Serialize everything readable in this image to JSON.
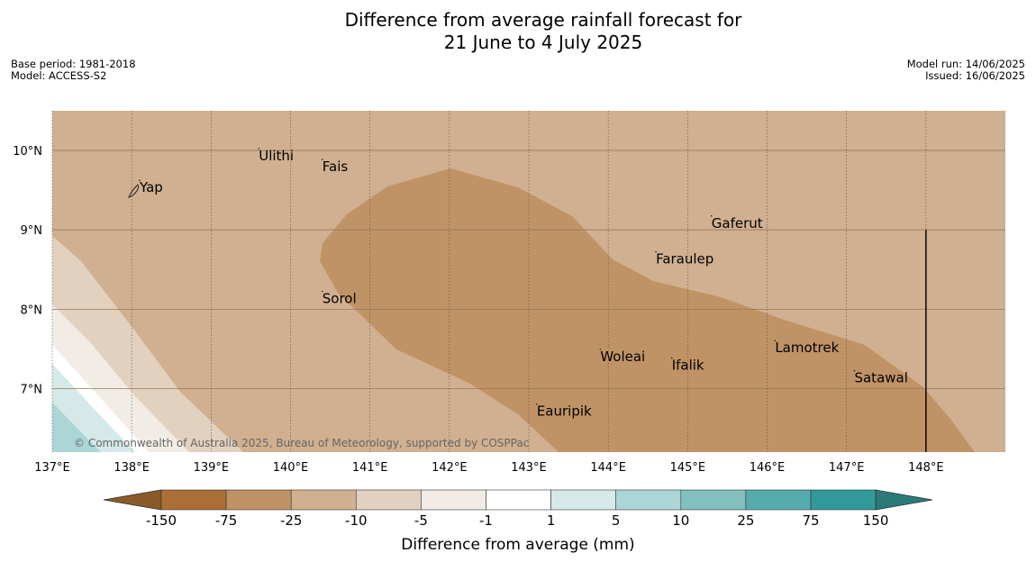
{
  "title": {
    "line1": "Difference from average rainfall forecast for",
    "line2": "21 June to 4 July 2025"
  },
  "meta_left": {
    "base_period": "Base period: 1981-2018",
    "model": "Model: ACCESS-S2"
  },
  "meta_right": {
    "model_run": "Model run: 14/06/2025",
    "issued": "Issued: 16/06/2025"
  },
  "map": {
    "lon_range": [
      137,
      149
    ],
    "lat_range": [
      6.2,
      10.5
    ],
    "lat_ticks": [
      {
        "value": 10,
        "label": "10°N"
      },
      {
        "value": 9,
        "label": "9°N"
      },
      {
        "value": 8,
        "label": "8°N"
      },
      {
        "value": 7,
        "label": "7°N"
      }
    ],
    "lon_ticks": [
      {
        "value": 137,
        "label": "137°E"
      },
      {
        "value": 138,
        "label": "138°E"
      },
      {
        "value": 139,
        "label": "139°E"
      },
      {
        "value": 140,
        "label": "140°E"
      },
      {
        "value": 141,
        "label": "141°E"
      },
      {
        "value": 142,
        "label": "142°E"
      },
      {
        "value": 143,
        "label": "143°E"
      },
      {
        "value": 144,
        "label": "144°E"
      },
      {
        "value": 145,
        "label": "145°E"
      },
      {
        "value": 146,
        "label": "146°E"
      },
      {
        "value": 147,
        "label": "147°E"
      },
      {
        "value": 148,
        "label": "148°E"
      }
    ],
    "places": [
      {
        "name": "Ulithi",
        "lon": 139.6,
        "lat": 9.9
      },
      {
        "name": "Fais",
        "lon": 140.4,
        "lat": 9.76
      },
      {
        "name": "Yap",
        "lon": 138.1,
        "lat": 9.5
      },
      {
        "name": "Gaferut",
        "lon": 145.3,
        "lat": 9.05
      },
      {
        "name": "Faraulep",
        "lon": 144.6,
        "lat": 8.6
      },
      {
        "name": "Sorol",
        "lon": 140.4,
        "lat": 8.1
      },
      {
        "name": "Woleai",
        "lon": 143.9,
        "lat": 7.37
      },
      {
        "name": "Ifalik",
        "lon": 144.8,
        "lat": 7.26
      },
      {
        "name": "Lamotrek",
        "lon": 146.1,
        "lat": 7.48
      },
      {
        "name": "Satawal",
        "lon": 147.1,
        "lat": 7.1
      },
      {
        "name": "Eauripik",
        "lon": 143.1,
        "lat": 6.68
      }
    ],
    "boundary_line": {
      "lon": 148,
      "lat_from": 6.2,
      "lat_to": 9
    }
  },
  "copyright": "© Commonwealth of Australia 2025, Bureau of Meteorology, supported by COSPPac",
  "colorbar": {
    "title": "Difference from average (mm)",
    "labels": [
      "-150",
      "-75",
      "-25",
      "-10",
      "-5",
      "-1",
      "1",
      "5",
      "10",
      "25",
      "75",
      "150"
    ],
    "colors": [
      "#ab6f36",
      "#c09366",
      "#d0b090",
      "#e3d1bf",
      "#f2ece6",
      "#ffffff",
      "#d4e9e8",
      "#acd5d6",
      "#81c0bf",
      "#56abac",
      "#31999a"
    ],
    "under_color": "#8a5a2a",
    "over_color": "#2a7a7a"
  },
  "fill_colors": {
    "base": "#d0b090",
    "dry_core": "#c09366",
    "band_10": "#e3d1bf",
    "band_5": "#f2ece6",
    "band_1": "#ffffff",
    "wet_1": "#d4e9e8",
    "wet_5": "#acd5d6"
  }
}
